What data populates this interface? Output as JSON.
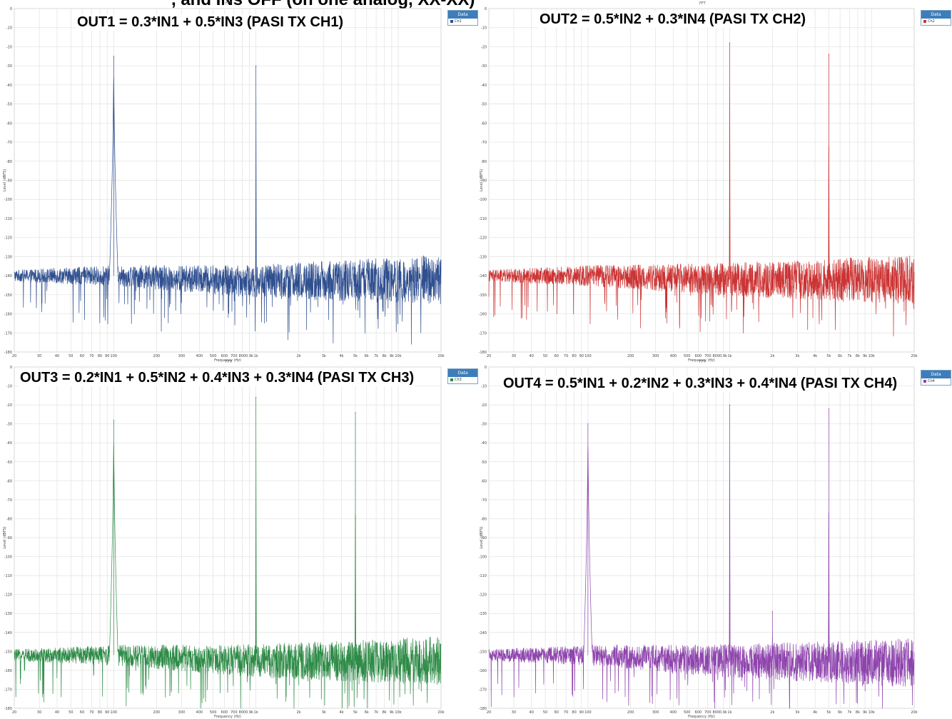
{
  "top_caption": ", and INs OFF (on one analog, XX-XX)",
  "chart_data": [
    {
      "type": "line",
      "id": "p1",
      "title": "OUT1 = 0.3*IN1 + 0.5*IN3 (PASI TX CH1)",
      "top_label": "FFT",
      "xlabel": "Frequency (Hz)",
      "ylabel": "Level (dBFS)",
      "xscale": "log",
      "xlim": [
        20,
        20000
      ],
      "ylim": [
        -180,
        0
      ],
      "grid": true,
      "legend": {
        "header": "Data",
        "placement": "top-right",
        "entries": [
          {
            "name": "Ch1",
            "color": "#2f4f8f"
          }
        ]
      },
      "series": [
        {
          "name": "Ch1",
          "color": "#2f4f8f",
          "peaks": [
            {
              "x": 100,
              "y": -25,
              "width": 0.03
            },
            {
              "x": 1000,
              "y": -30,
              "width": 0.003
            }
          ],
          "noise_floor": [
            [
              20,
              -140
            ],
            [
              100,
              -140
            ],
            [
              1000,
              -143
            ],
            [
              20000,
              -142
            ]
          ]
        }
      ]
    },
    {
      "type": "line",
      "id": "p2",
      "title": "OUT2 = 0.5*IN2 + 0.3*IN4 (PASI TX CH2)",
      "top_label": "FFT",
      "xlabel": "Frequency (Hz)",
      "ylabel": "Level (dBFS)",
      "xscale": "log",
      "xlim": [
        20,
        20000
      ],
      "ylim": [
        -180,
        0
      ],
      "grid": true,
      "legend": {
        "header": "Data",
        "placement": "top-right",
        "entries": [
          {
            "name": "Ch2",
            "color": "#cc3333"
          }
        ]
      },
      "series": [
        {
          "name": "Ch2",
          "color": "#cc3333",
          "peaks": [
            {
              "x": 1000,
              "y": -18,
              "width": 0.003
            },
            {
              "x": 5000,
              "y": -24,
              "width": 0.003
            }
          ],
          "noise_floor": [
            [
              20,
              -140
            ],
            [
              100,
              -140
            ],
            [
              1000,
              -142
            ],
            [
              20000,
              -142
            ]
          ]
        }
      ]
    },
    {
      "type": "line",
      "id": "p3",
      "title": "OUT3 = 0.2*IN1 + 0.5*IN2 + 0.4*IN3 + 0.3*IN4 (PASI TX CH3)",
      "top_label": "FFT",
      "xlabel": "Frequency (Hz)",
      "ylabel": "Level (dBFS)",
      "xscale": "log",
      "xlim": [
        20,
        20000
      ],
      "ylim": [
        -180,
        0
      ],
      "grid": true,
      "legend": {
        "header": "Data",
        "placement": "top-right",
        "entries": [
          {
            "name": "Ch3",
            "color": "#2e8b47"
          }
        ]
      },
      "series": [
        {
          "name": "Ch3",
          "color": "#2e8b47",
          "peaks": [
            {
              "x": 100,
              "y": -28,
              "width": 0.03
            },
            {
              "x": 1000,
              "y": -16,
              "width": 0.003
            },
            {
              "x": 5000,
              "y": -24,
              "width": 0.003
            }
          ],
          "noise_floor": [
            [
              20,
              -152
            ],
            [
              100,
              -152
            ],
            [
              1000,
              -155
            ],
            [
              20000,
              -155
            ]
          ]
        }
      ]
    },
    {
      "type": "line",
      "id": "p4",
      "title": "OUT4 = 0.5*IN1 + 0.2*IN2 + 0.3*IN3 + 0.4*IN4 (PASI TX CH4)",
      "top_label": "FFT",
      "xlabel": "Frequency (Hz)",
      "ylabel": "Level (dBFS)",
      "xscale": "log",
      "xlim": [
        20,
        20000
      ],
      "ylim": [
        -180,
        0
      ],
      "grid": true,
      "legend": {
        "header": "Data",
        "placement": "top-right",
        "entries": [
          {
            "name": "Ch4",
            "color": "#8e44ad"
          }
        ]
      },
      "series": [
        {
          "name": "Ch4",
          "color": "#8e44ad",
          "peaks": [
            {
              "x": 100,
              "y": -30,
              "width": 0.03
            },
            {
              "x": 1000,
              "y": -20,
              "width": 0.003
            },
            {
              "x": 5000,
              "y": -22,
              "width": 0.003
            },
            {
              "x": 2000,
              "y": -129,
              "width": 0.002
            }
          ],
          "noise_floor": [
            [
              20,
              -152
            ],
            [
              100,
              -152
            ],
            [
              1000,
              -155
            ],
            [
              20000,
              -156
            ]
          ]
        }
      ]
    }
  ],
  "y_ticks": [
    0,
    -10,
    -20,
    -30,
    -40,
    -50,
    -60,
    -70,
    -80,
    -90,
    -100,
    -110,
    -120,
    -130,
    -140,
    -150,
    -160,
    -170,
    -180
  ],
  "x_ticks": [
    20,
    30,
    40,
    50,
    60,
    70,
    80,
    90,
    100,
    200,
    300,
    400,
    500,
    600,
    700,
    800,
    900,
    1000,
    2000,
    3000,
    4000,
    5000,
    6000,
    7000,
    8000,
    9000,
    10000,
    20000
  ],
  "x_tick_labels": [
    "20",
    "30",
    "40",
    "50",
    "60",
    "70",
    "80",
    "90",
    "100",
    "200",
    "300",
    "400",
    "500",
    "600",
    "700",
    "800",
    "0.9k",
    "1k",
    "2k",
    "3k",
    "4k",
    "5k",
    "6k",
    "7k",
    "8k",
    "9k",
    "10k",
    "20k"
  ]
}
